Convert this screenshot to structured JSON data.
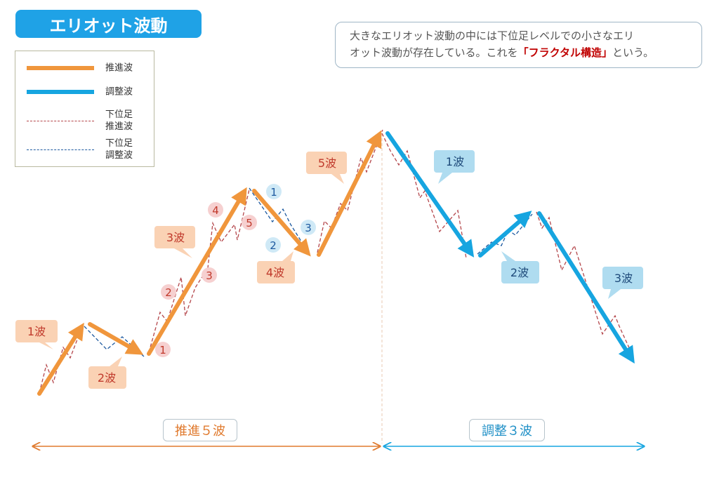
{
  "title": "エリオット波動",
  "legend": [
    {
      "label": "推進波"
    },
    {
      "label": "調整波"
    },
    {
      "label": "下位足\n推進波"
    },
    {
      "label": "下位足\n調整波"
    }
  ],
  "note": {
    "line1": "大きなエリオット波動の中には下位足レベルでの小さなエリ",
    "line2_before": "オット波動が存在している。これを",
    "line2_highlight": "「フラクタル構造」",
    "line2_after": "という。"
  },
  "wave_labels": {
    "impulse_1": "1波",
    "impulse_2": "2波",
    "impulse_3": "3波",
    "impulse_4": "4波",
    "impulse_5": "5波",
    "corrective_1": "1波",
    "corrective_2": "2波",
    "corrective_3": "3波"
  },
  "sub_numbers": {
    "red": [
      "1",
      "2",
      "3",
      "4",
      "5"
    ],
    "blue": [
      "1",
      "2",
      "3"
    ]
  },
  "phases": {
    "impulse": "推進５波",
    "corrective": "調整３波"
  },
  "colors": {
    "impulse": "#f0963c",
    "corrective": "#16a5e0",
    "sub_impulse": "#b4464b",
    "sub_corrective": "#1e5aa0",
    "impulse_label_bg": "#fad2b4",
    "corrective_label_bg": "#afdcf0",
    "title_bg": "#1fa2e6",
    "highlight_text": "#c00000"
  }
}
